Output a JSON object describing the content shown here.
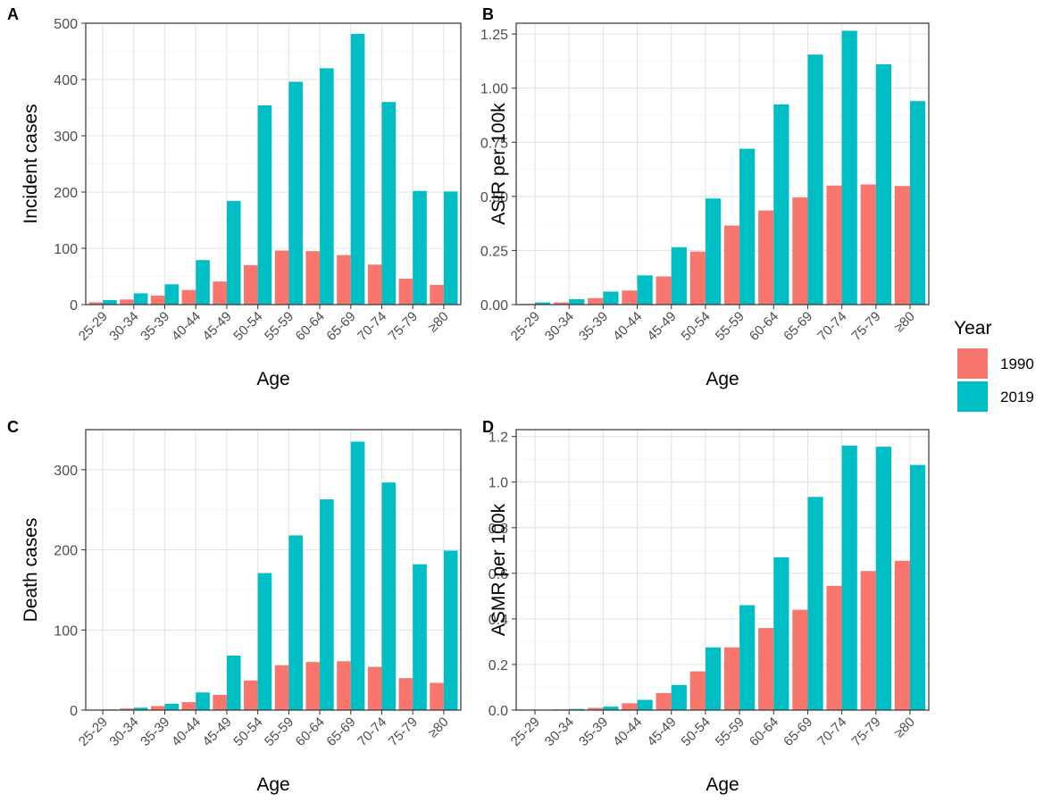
{
  "legend": {
    "title": "Year",
    "entries": [
      {
        "label": "1990",
        "color": "#F8766D"
      },
      {
        "label": "2019",
        "color": "#00BFC4"
      }
    ]
  },
  "chart_data": [
    {
      "type": "bar",
      "panel_label": "A",
      "xlabel": "Age",
      "ylabel": "Incident cases",
      "categories": [
        "25-29",
        "30-34",
        "35-39",
        "40-44",
        "45-49",
        "50-54",
        "55-59",
        "60-64",
        "65-69",
        "70-74",
        "75-79",
        "≥80"
      ],
      "series": [
        {
          "name": "1990",
          "values": [
            4,
            9,
            16,
            26,
            41,
            70,
            96,
            95,
            88,
            71,
            46,
            35
          ]
        },
        {
          "name": "2019",
          "values": [
            8,
            20,
            36,
            79,
            184,
            354,
            396,
            420,
            481,
            360,
            202,
            201
          ]
        }
      ],
      "ylim": [
        0,
        500
      ],
      "yticks": [
        0,
        100,
        200,
        300,
        400,
        500
      ],
      "ytick_labels": [
        "0",
        "100",
        "200",
        "300",
        "400",
        "500"
      ]
    },
    {
      "type": "bar",
      "panel_label": "B",
      "xlabel": "Age",
      "ylabel": "ASIR per 100k",
      "categories": [
        "25-29",
        "30-34",
        "35-39",
        "40-44",
        "45-49",
        "50-54",
        "55-59",
        "60-64",
        "65-69",
        "70-74",
        "75-79",
        "≥80"
      ],
      "series": [
        {
          "name": "1990",
          "values": [
            0.003,
            0.01,
            0.03,
            0.065,
            0.13,
            0.245,
            0.365,
            0.435,
            0.495,
            0.55,
            0.555,
            0.548
          ]
        },
        {
          "name": "2019",
          "values": [
            0.01,
            0.025,
            0.06,
            0.135,
            0.265,
            0.49,
            0.72,
            0.925,
            1.155,
            1.265,
            1.11,
            0.94
          ]
        }
      ],
      "ylim": [
        0,
        1.3
      ],
      "yticks": [
        0,
        0.25,
        0.5,
        0.75,
        1.0,
        1.25
      ],
      "ytick_labels": [
        "0.00",
        "0.25",
        "0.50",
        "0.75",
        "1.00",
        "1.25"
      ]
    },
    {
      "type": "bar",
      "panel_label": "C",
      "xlabel": "Age",
      "ylabel": "Death cases",
      "categories": [
        "25-29",
        "30-34",
        "35-39",
        "40-44",
        "45-49",
        "50-54",
        "55-59",
        "60-64",
        "65-69",
        "70-74",
        "75-79",
        "≥80"
      ],
      "series": [
        {
          "name": "1990",
          "values": [
            0.5,
            2,
            5,
            10,
            19,
            37,
            56,
            60,
            61,
            54,
            40,
            34
          ]
        },
        {
          "name": "2019",
          "values": [
            0.8,
            3,
            8,
            22,
            68,
            171,
            218,
            263,
            335,
            284,
            182,
            199
          ]
        }
      ],
      "ylim": [
        0,
        350
      ],
      "yticks": [
        0,
        100,
        200,
        300
      ],
      "ytick_labels": [
        "0",
        "100",
        "200",
        "300"
      ]
    },
    {
      "type": "bar",
      "panel_label": "D",
      "xlabel": "Age",
      "ylabel": "ASMR per 100k",
      "categories": [
        "25-29",
        "30-34",
        "35-39",
        "40-44",
        "45-49",
        "50-54",
        "55-59",
        "60-64",
        "65-69",
        "70-74",
        "75-79",
        "≥80"
      ],
      "series": [
        {
          "name": "1990",
          "values": [
            0.001,
            0.003,
            0.01,
            0.03,
            0.075,
            0.17,
            0.275,
            0.36,
            0.44,
            0.545,
            0.61,
            0.655
          ]
        },
        {
          "name": "2019",
          "values": [
            0.002,
            0.005,
            0.015,
            0.045,
            0.11,
            0.275,
            0.46,
            0.67,
            0.935,
            1.16,
            1.155,
            1.075
          ]
        }
      ],
      "ylim": [
        0,
        1.23
      ],
      "yticks": [
        0,
        0.2,
        0.4,
        0.6,
        0.8,
        1.0,
        1.2
      ],
      "ytick_labels": [
        "0.0",
        "0.2",
        "0.4",
        "0.6",
        "0.8",
        "1.0",
        "1.2"
      ]
    }
  ]
}
